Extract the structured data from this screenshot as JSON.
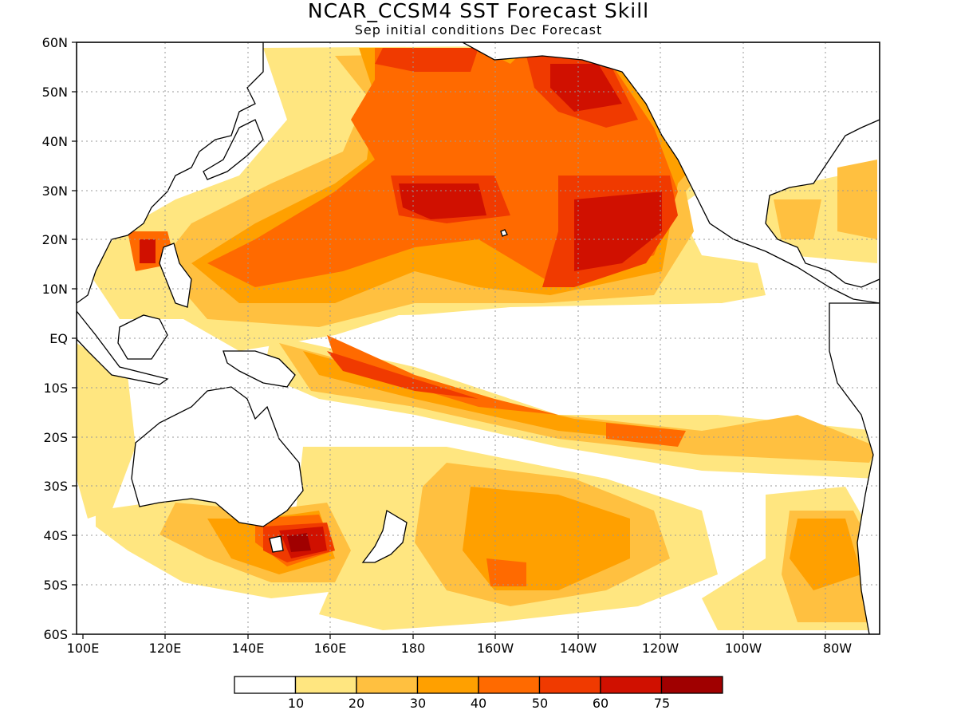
{
  "title": "NCAR_CCSM4  SST Forecast Skill",
  "subtitle": "Sep initial conditions  Dec Forecast",
  "lat_labels": [
    "60N",
    "50N",
    "40N",
    "30N",
    "20N",
    "10N",
    "EQ",
    "10S",
    "20S",
    "30S",
    "40S",
    "50S",
    "60S"
  ],
  "lon_labels": [
    "100E",
    "120E",
    "140E",
    "160E",
    "180",
    "160W",
    "140W",
    "120W",
    "100W",
    "80W"
  ],
  "colorbar": {
    "labels": [
      "10",
      "20",
      "30",
      "40",
      "50",
      "60",
      "75"
    ],
    "colors": [
      "#ffffff",
      "#ffe680",
      "#ffc040",
      "#ffa000",
      "#ff6a00",
      "#f03a00",
      "#d01000",
      "#a00000"
    ]
  },
  "map_colors": {
    "land_outline": "#000000",
    "grid": "#999999"
  }
}
